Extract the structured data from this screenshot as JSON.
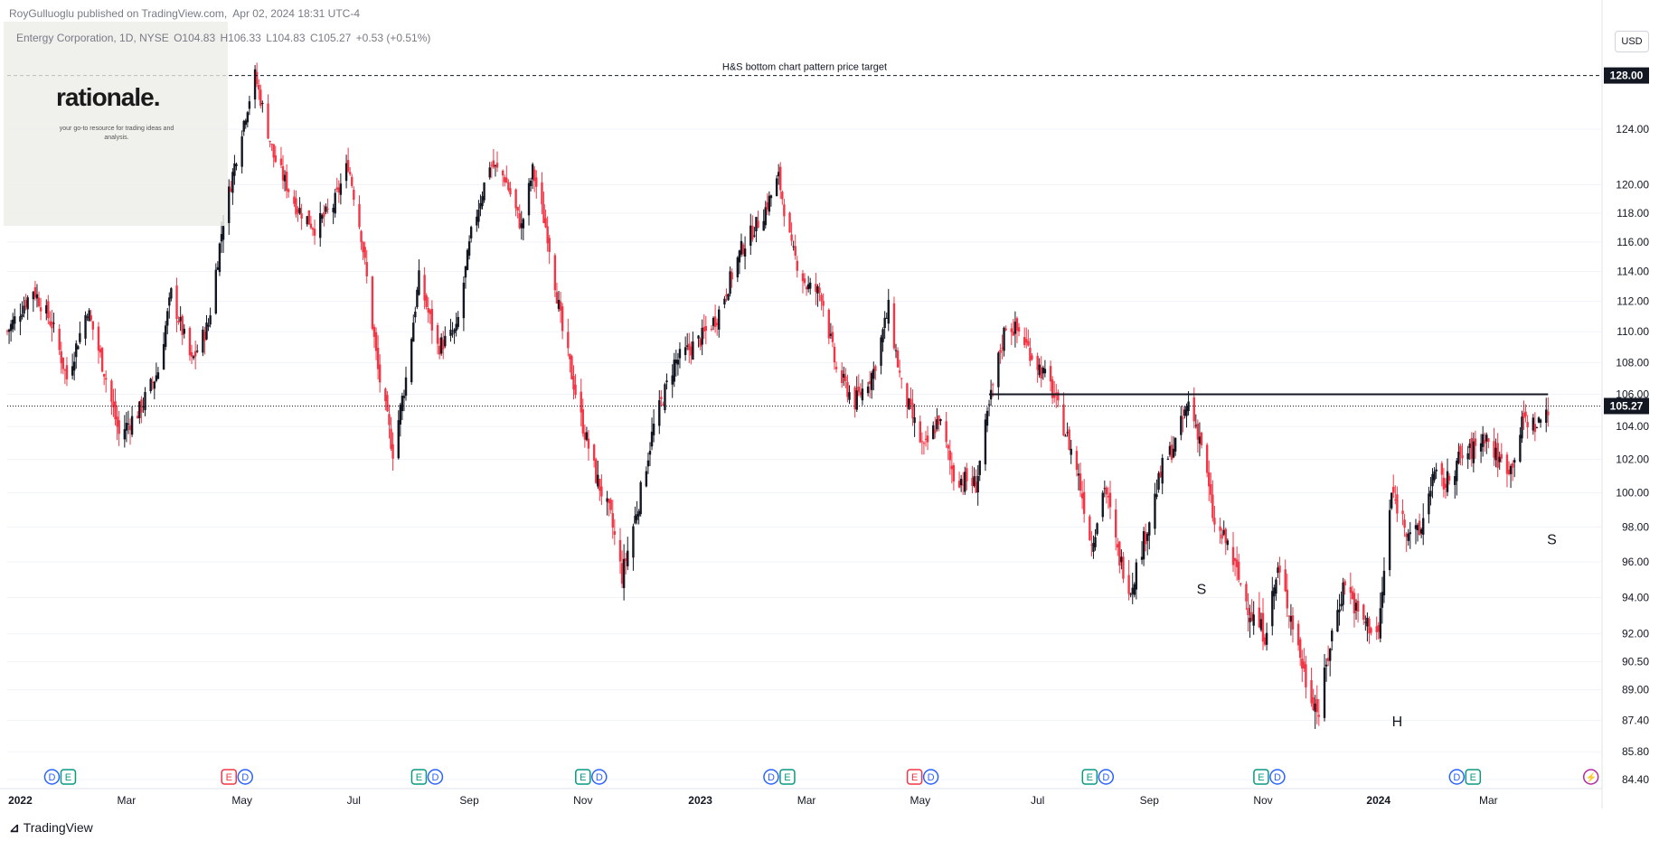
{
  "header": {
    "publisher": "RoyGulluoglu published on TradingView.com,",
    "date": "Apr 02, 2024 18:31 UTC-4"
  },
  "symbol": {
    "name": "Entergy Corporation, 1D, NYSE",
    "open": "O104.83",
    "high": "H106.33",
    "low": "L104.83",
    "close": "C105.27",
    "change": "+0.53 (+0.51%)"
  },
  "watermark": {
    "logo": "rationale.",
    "tagline": "your go-to resource for trading ideas and analysis."
  },
  "currency_button": "USD",
  "footer": {
    "brand": "TradingView"
  },
  "colors": {
    "up": "#131722",
    "down": "#f23645",
    "grid": "#f0f3fa",
    "axis_border": "#e0e3eb"
  },
  "chart_data": {
    "type": "candlestick",
    "title": "",
    "ylabel": "",
    "xlabel": "",
    "ylim": [
      84.4,
      132.0
    ],
    "scale": "log",
    "y_ticks": [
      "84.40",
      "85.80",
      "87.40",
      "89.00",
      "90.50",
      "92.00",
      "94.00",
      "96.00",
      "98.00",
      "100.00",
      "102.00",
      "104.00",
      "106.00",
      "108.00",
      "110.00",
      "112.00",
      "114.00",
      "116.00",
      "118.00",
      "120.00",
      "124.00"
    ],
    "x_ticks": [
      {
        "label": "2022",
        "bold": true,
        "date": "2022-01-03"
      },
      {
        "label": "Mar",
        "bold": false,
        "date": "2022-03-01"
      },
      {
        "label": "May",
        "bold": false,
        "date": "2022-05-02"
      },
      {
        "label": "Jul",
        "bold": false,
        "date": "2022-07-01"
      },
      {
        "label": "Sep",
        "bold": false,
        "date": "2022-09-01"
      },
      {
        "label": "Nov",
        "bold": false,
        "date": "2022-11-01"
      },
      {
        "label": "2023",
        "bold": true,
        "date": "2023-01-03"
      },
      {
        "label": "Mar",
        "bold": false,
        "date": "2023-03-01"
      },
      {
        "label": "May",
        "bold": false,
        "date": "2023-05-01"
      },
      {
        "label": "Jul",
        "bold": false,
        "date": "2023-07-03"
      },
      {
        "label": "Sep",
        "bold": false,
        "date": "2023-09-01"
      },
      {
        "label": "Nov",
        "bold": false,
        "date": "2023-11-01"
      },
      {
        "label": "2024",
        "bold": true,
        "date": "2024-01-02"
      },
      {
        "label": "Mar",
        "bold": false,
        "date": "2024-03-01"
      }
    ],
    "price_series": [
      {
        "date": "2021-12-27",
        "price": 110.0
      },
      {
        "date": "2022-01-10",
        "price": 112.8
      },
      {
        "date": "2022-01-20",
        "price": 110.5
      },
      {
        "date": "2022-01-28",
        "price": 107.0
      },
      {
        "date": "2022-02-08",
        "price": 111.5
      },
      {
        "date": "2022-02-17",
        "price": 107.5
      },
      {
        "date": "2022-02-25",
        "price": 103.5
      },
      {
        "date": "2022-03-08",
        "price": 105.0
      },
      {
        "date": "2022-03-18",
        "price": 107.5
      },
      {
        "date": "2022-03-25",
        "price": 112.5
      },
      {
        "date": "2022-04-05",
        "price": 108.0
      },
      {
        "date": "2022-04-14",
        "price": 110.5
      },
      {
        "date": "2022-04-22",
        "price": 117.5
      },
      {
        "date": "2022-05-02",
        "price": 124.0
      },
      {
        "date": "2022-05-09",
        "price": 128.0
      },
      {
        "date": "2022-05-19",
        "price": 122.0
      },
      {
        "date": "2022-05-31",
        "price": 118.5
      },
      {
        "date": "2022-06-10",
        "price": 117.0
      },
      {
        "date": "2022-06-20",
        "price": 118.5
      },
      {
        "date": "2022-06-28",
        "price": 121.5
      },
      {
        "date": "2022-07-05",
        "price": 116.5
      },
      {
        "date": "2022-07-14",
        "price": 107.5
      },
      {
        "date": "2022-07-22",
        "price": 102.5
      },
      {
        "date": "2022-07-29",
        "price": 107.0
      },
      {
        "date": "2022-08-05",
        "price": 113.5
      },
      {
        "date": "2022-08-15",
        "price": 109.0
      },
      {
        "date": "2022-08-25",
        "price": 110.0
      },
      {
        "date": "2022-09-02",
        "price": 116.5
      },
      {
        "date": "2022-09-12",
        "price": 121.5
      },
      {
        "date": "2022-09-20",
        "price": 120.5
      },
      {
        "date": "2022-09-29",
        "price": 117.0
      },
      {
        "date": "2022-10-05",
        "price": 121.0
      },
      {
        "date": "2022-10-13",
        "price": 116.5
      },
      {
        "date": "2022-10-21",
        "price": 110.0
      },
      {
        "date": "2022-10-31",
        "price": 104.5
      },
      {
        "date": "2022-11-08",
        "price": 101.0
      },
      {
        "date": "2022-11-16",
        "price": 98.5
      },
      {
        "date": "2022-11-22",
        "price": 95.2
      },
      {
        "date": "2022-12-01",
        "price": 99.5
      },
      {
        "date": "2022-12-09",
        "price": 104.0
      },
      {
        "date": "2022-12-20",
        "price": 108.0
      },
      {
        "date": "2023-01-03",
        "price": 109.5
      },
      {
        "date": "2023-01-12",
        "price": 111.0
      },
      {
        "date": "2023-01-25",
        "price": 115.5
      },
      {
        "date": "2023-02-06",
        "price": 118.0
      },
      {
        "date": "2023-02-14",
        "price": 120.5
      },
      {
        "date": "2023-02-21",
        "price": 115.5
      },
      {
        "date": "2023-03-01",
        "price": 113.0
      },
      {
        "date": "2023-03-09",
        "price": 112.5
      },
      {
        "date": "2023-03-17",
        "price": 107.5
      },
      {
        "date": "2023-03-27",
        "price": 105.5
      },
      {
        "date": "2023-04-06",
        "price": 107.5
      },
      {
        "date": "2023-04-14",
        "price": 111.5
      },
      {
        "date": "2023-04-21",
        "price": 106.5
      },
      {
        "date": "2023-05-03",
        "price": 102.5
      },
      {
        "date": "2023-05-11",
        "price": 104.5
      },
      {
        "date": "2023-05-19",
        "price": 101.0
      },
      {
        "date": "2023-05-31",
        "price": 100.5
      },
      {
        "date": "2023-06-09",
        "price": 106.5
      },
      {
        "date": "2023-06-16",
        "price": 110.5
      },
      {
        "date": "2023-06-23",
        "price": 110.0
      },
      {
        "date": "2023-06-30",
        "price": 108.5
      },
      {
        "date": "2023-07-10",
        "price": 106.5
      },
      {
        "date": "2023-07-17",
        "price": 104.0
      },
      {
        "date": "2023-07-24",
        "price": 101.5
      },
      {
        "date": "2023-08-01",
        "price": 97.0
      },
      {
        "date": "2023-08-08",
        "price": 100.5
      },
      {
        "date": "2023-08-15",
        "price": 96.5
      },
      {
        "date": "2023-08-22",
        "price": 94.5
      },
      {
        "date": "2023-08-31",
        "price": 98.0
      },
      {
        "date": "2023-09-08",
        "price": 101.5
      },
      {
        "date": "2023-09-15",
        "price": 103.0
      },
      {
        "date": "2023-09-22",
        "price": 105.5
      },
      {
        "date": "2023-09-29",
        "price": 103.0
      },
      {
        "date": "2023-10-06",
        "price": 98.0
      },
      {
        "date": "2023-10-13",
        "price": 97.0
      },
      {
        "date": "2023-10-19",
        "price": 95.0
      },
      {
        "date": "2023-10-26",
        "price": 93.0
      },
      {
        "date": "2023-11-02",
        "price": 92.0
      },
      {
        "date": "2023-11-09",
        "price": 95.5
      },
      {
        "date": "2023-11-16",
        "price": 93.0
      },
      {
        "date": "2023-11-24",
        "price": 89.5
      },
      {
        "date": "2023-12-01",
        "price": 87.8
      },
      {
        "date": "2023-12-08",
        "price": 92.0
      },
      {
        "date": "2023-12-15",
        "price": 95.0
      },
      {
        "date": "2023-12-22",
        "price": 93.0
      },
      {
        "date": "2024-01-02",
        "price": 92.0
      },
      {
        "date": "2024-01-09",
        "price": 100.0
      },
      {
        "date": "2024-01-17",
        "price": 98.0
      },
      {
        "date": "2024-01-24",
        "price": 97.5
      },
      {
        "date": "2024-01-31",
        "price": 101.0
      },
      {
        "date": "2024-02-07",
        "price": 100.5
      },
      {
        "date": "2024-02-14",
        "price": 102.0
      },
      {
        "date": "2024-02-21",
        "price": 102.5
      },
      {
        "date": "2024-02-28",
        "price": 103.5
      },
      {
        "date": "2024-03-06",
        "price": 102.0
      },
      {
        "date": "2024-03-13",
        "price": 101.5
      },
      {
        "date": "2024-03-20",
        "price": 104.5
      },
      {
        "date": "2024-03-27",
        "price": 104.0
      },
      {
        "date": "2024-04-02",
        "price": 105.27
      }
    ],
    "last_price": 105.27,
    "last_price_label": "105.27",
    "neckline": {
      "value": 106.0,
      "start_date": "2023-06-07",
      "end_date": "2024-04-02"
    },
    "target": {
      "value": 128.0,
      "label": "128.00",
      "text": "H&S bottom chart pattern price target"
    },
    "pattern_labels": [
      {
        "text": "S",
        "date": "2023-09-29",
        "price": 94.2
      },
      {
        "text": "H",
        "date": "2024-01-12",
        "price": 87.1
      },
      {
        "text": "S",
        "date": "2024-04-04",
        "price": 97.0
      }
    ],
    "events": [
      {
        "date": "2022-01-20",
        "labels": [
          "D",
          "E"
        ]
      },
      {
        "date": "2022-04-25",
        "labels": [
          "E",
          "D"
        ]
      },
      {
        "date": "2022-08-05",
        "labels": [
          "E",
          "D"
        ]
      },
      {
        "date": "2022-11-01",
        "labels": [
          "E",
          "D"
        ]
      },
      {
        "date": "2023-02-10",
        "labels": [
          "D",
          "E"
        ]
      },
      {
        "date": "2023-04-28",
        "labels": [
          "E",
          "D"
        ]
      },
      {
        "date": "2023-07-31",
        "labels": [
          "E",
          "D"
        ]
      },
      {
        "date": "2023-10-31",
        "labels": [
          "E",
          "D"
        ]
      },
      {
        "date": "2024-02-13",
        "labels": [
          "D",
          "E"
        ]
      },
      {
        "date": "2024-04-25",
        "labels": [
          "bolt"
        ]
      }
    ]
  }
}
